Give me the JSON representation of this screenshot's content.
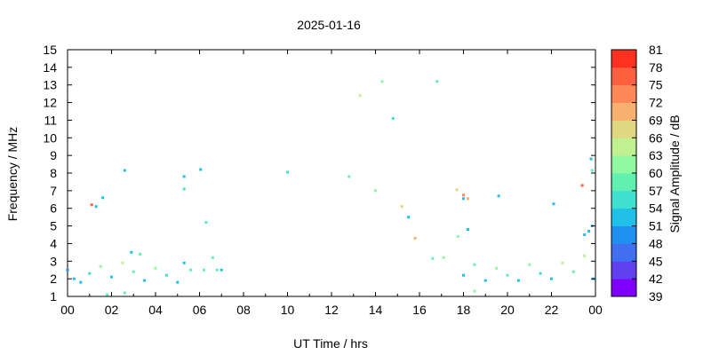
{
  "chart_data": {
    "type": "scatter",
    "title": "2025-01-16",
    "xlabel": "UT Time / hrs",
    "ylabel": "Frequency / MHz",
    "colorbar_label": "Signal Amplitude / dB",
    "xlim": [
      0,
      24
    ],
    "ylim": [
      1,
      15
    ],
    "x_ticks": [
      "00",
      "02",
      "04",
      "06",
      "08",
      "10",
      "12",
      "14",
      "16",
      "18",
      "20",
      "22",
      "00"
    ],
    "y_ticks": [
      "1",
      "2",
      "3",
      "4",
      "5",
      "6",
      "7",
      "8",
      "9",
      "10",
      "11",
      "12",
      "13",
      "14",
      "15"
    ],
    "colorbar": {
      "levels": [
        "39",
        "42",
        "45",
        "48",
        "51",
        "54",
        "57",
        "60",
        "63",
        "66",
        "69",
        "72",
        "75",
        "78",
        "81"
      ],
      "colors": [
        "#8000ff",
        "#6040f0",
        "#4070f0",
        "#2090f0",
        "#20c0e8",
        "#40e0d0",
        "#60f0b0",
        "#90f8a0",
        "#c0f090",
        "#e0d880",
        "#f8b070",
        "#ff8858",
        "#ff6040",
        "#ff3020"
      ]
    },
    "grid": false,
    "points": [
      [
        1.1,
        6.2,
        75
      ],
      [
        1.3,
        6.1,
        51
      ],
      [
        1.6,
        6.6,
        51
      ],
      [
        2.6,
        8.15,
        51
      ],
      [
        5.3,
        7.8,
        51
      ],
      [
        5.3,
        7.1,
        54
      ],
      [
        6.05,
        8.2,
        51
      ],
      [
        6.3,
        5.2,
        57
      ],
      [
        6.6,
        3.2,
        57
      ],
      [
        10.0,
        8.05,
        54
      ],
      [
        12.8,
        7.8,
        57
      ],
      [
        13.3,
        12.4,
        63
      ],
      [
        14.0,
        7.0,
        60
      ],
      [
        14.3,
        13.2,
        60
      ],
      [
        14.8,
        11.1,
        54
      ],
      [
        15.2,
        6.1,
        66
      ],
      [
        15.5,
        5.5,
        51
      ],
      [
        15.8,
        4.3,
        69
      ],
      [
        16.6,
        3.15,
        57
      ],
      [
        16.8,
        13.2,
        57
      ],
      [
        17.1,
        3.2,
        60
      ],
      [
        17.7,
        7.05,
        66
      ],
      [
        17.75,
        4.4,
        60
      ],
      [
        18.0,
        6.75,
        72
      ],
      [
        18.0,
        6.55,
        51
      ],
      [
        18.2,
        6.55,
        69
      ],
      [
        18.2,
        4.8,
        51
      ],
      [
        18.5,
        1.3,
        60
      ],
      [
        19.6,
        6.7,
        51
      ],
      [
        22.1,
        6.25,
        51
      ],
      [
        23.4,
        7.3,
        75
      ],
      [
        23.8,
        8.8,
        51
      ],
      [
        23.85,
        8.15,
        57
      ],
      [
        23.85,
        5.0,
        51
      ],
      [
        23.5,
        4.5,
        51
      ],
      [
        23.7,
        4.7,
        51
      ],
      [
        1.8,
        1.1,
        57
      ],
      [
        2.6,
        1.2,
        57
      ],
      [
        2.9,
        3.5,
        51
      ],
      [
        3.3,
        3.4,
        57
      ]
    ],
    "band_samples": [
      [
        0.0,
        2.5,
        48
      ],
      [
        0.3,
        2.0,
        51
      ],
      [
        0.6,
        1.8,
        51
      ],
      [
        1.0,
        2.3,
        54
      ],
      [
        1.5,
        2.7,
        60
      ],
      [
        2.0,
        2.1,
        51
      ],
      [
        2.5,
        2.9,
        63
      ],
      [
        3.0,
        2.4,
        57
      ],
      [
        3.5,
        1.9,
        51
      ],
      [
        4.0,
        2.6,
        60
      ],
      [
        4.5,
        2.2,
        54
      ],
      [
        5.0,
        1.8,
        51
      ],
      [
        5.3,
        2.9,
        51
      ],
      [
        5.6,
        2.5,
        57
      ],
      [
        6.2,
        2.5,
        57
      ],
      [
        6.8,
        2.5,
        57
      ],
      [
        7.0,
        2.5,
        51
      ],
      [
        18.0,
        2.2,
        51
      ],
      [
        18.5,
        2.8,
        57
      ],
      [
        19.0,
        1.9,
        51
      ],
      [
        19.5,
        2.6,
        60
      ],
      [
        20.0,
        2.2,
        57
      ],
      [
        20.5,
        1.9,
        51
      ],
      [
        21.0,
        2.8,
        60
      ],
      [
        21.5,
        2.3,
        54
      ],
      [
        22.0,
        2.0,
        51
      ],
      [
        22.5,
        2.9,
        63
      ],
      [
        23.0,
        2.4,
        57
      ],
      [
        23.5,
        3.3,
        63
      ],
      [
        23.9,
        2.0,
        51
      ]
    ]
  }
}
